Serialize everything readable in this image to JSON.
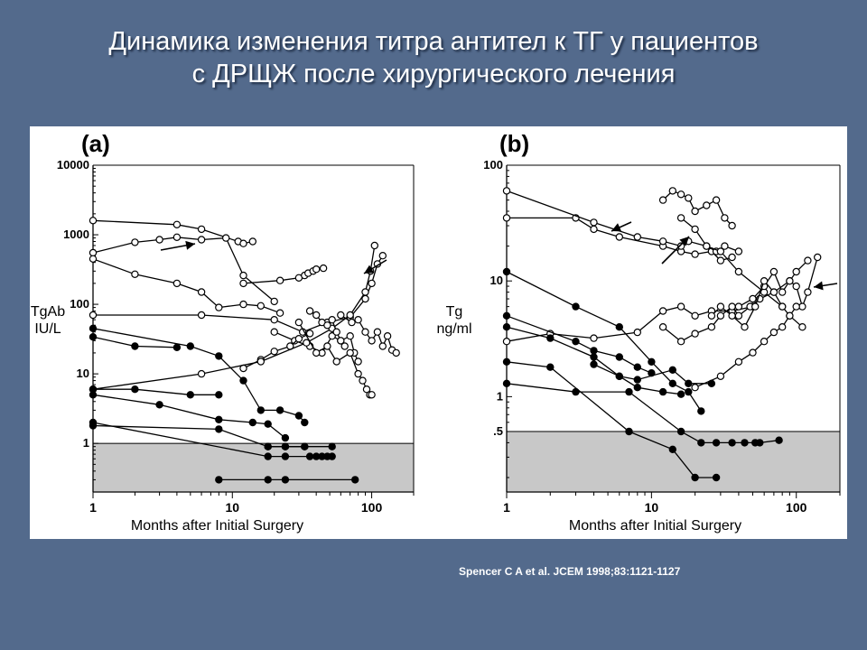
{
  "slide": {
    "title_line1": "Динамика изменения титра антител к ТГ у пациентов",
    "title_line2": "с ДРЩЖ после хирургического лечения",
    "citation": "Spencer C A et al. JCEM 1998;83:1121-1127"
  },
  "colors": {
    "background": "#536a8c",
    "panel": "#ffffff",
    "shaded_region": "#c8c8c8",
    "ink": "#000000"
  },
  "chart_data": [
    {
      "type": "scatter",
      "panel_label": "(a)",
      "xlabel": "Months after Initial Surgery",
      "ylabel_line1": "TgAb",
      "ylabel_line2": "IU/L",
      "x_scale": "log",
      "y_scale": "log",
      "xlim": [
        1,
        200
      ],
      "ylim": [
        0.2,
        10000
      ],
      "x_ticks": [
        {
          "value": 1,
          "label": "1"
        },
        {
          "value": 10,
          "label": "10"
        },
        {
          "value": 100,
          "label": "100"
        }
      ],
      "y_ticks": [
        {
          "value": 10000,
          "label": "10000"
        },
        {
          "value": 1000,
          "label": "1000"
        },
        {
          "value": 100,
          "label": "100"
        },
        {
          "value": 10,
          "label": "10"
        },
        {
          "value": 1,
          "label": "1"
        }
      ],
      "shaded_below": 1,
      "series": [
        {
          "marker": "open",
          "x": [
            1,
            4,
            6,
            11,
            12,
            14
          ],
          "y": [
            1600,
            1400,
            1200,
            800,
            750,
            800
          ]
        },
        {
          "marker": "open",
          "x": [
            1,
            2,
            3,
            4,
            6,
            9,
            12,
            20
          ],
          "y": [
            550,
            780,
            850,
            920,
            850,
            900,
            260,
            110
          ]
        },
        {
          "marker": "open",
          "x": [
            1,
            2,
            4,
            6,
            8,
            12,
            16,
            22
          ],
          "y": [
            450,
            270,
            200,
            150,
            90,
            100,
            95,
            75
          ]
        },
        {
          "marker": "open",
          "x": [
            12,
            22,
            30,
            33,
            35,
            38,
            40,
            45
          ],
          "y": [
            200,
            220,
            240,
            260,
            280,
            300,
            320,
            330
          ]
        },
        {
          "marker": "open",
          "x": [
            1,
            6,
            20,
            32,
            48,
            70,
            90,
            100,
            110,
            120
          ],
          "y": [
            70,
            70,
            60,
            40,
            55,
            65,
            120,
            200,
            380,
            500
          ]
        },
        {
          "marker": "open",
          "x": [
            20,
            28,
            36,
            44,
            52,
            60,
            70,
            75,
            80
          ],
          "y": [
            40,
            30,
            25,
            20,
            35,
            30,
            35,
            20,
            15
          ]
        },
        {
          "marker": "open",
          "x": [
            12,
            16,
            20,
            26,
            30,
            36
          ],
          "y": [
            12,
            16,
            21,
            25,
            32,
            38
          ]
        },
        {
          "marker": "open",
          "x": [
            1,
            6,
            16,
            34,
            52,
            70,
            90,
            98,
            105
          ],
          "y": [
            6,
            10,
            15,
            28,
            45,
            70,
            150,
            300,
            700
          ]
        },
        {
          "marker": "open",
          "x": [
            30,
            40,
            48,
            56,
            70,
            80,
            86,
            92,
            97,
            100
          ],
          "y": [
            55,
            20,
            25,
            15,
            20,
            10,
            8,
            6,
            5,
            5
          ]
        },
        {
          "marker": "open",
          "x": [
            60,
            72,
            80,
            90,
            100,
            110,
            120,
            130,
            140,
            150
          ],
          "y": [
            70,
            55,
            60,
            40,
            30,
            40,
            25,
            35,
            22,
            20
          ]
        },
        {
          "marker": "open",
          "x": [
            36,
            40,
            44,
            48,
            52,
            56,
            60,
            64
          ],
          "y": [
            80,
            70,
            55,
            50,
            60,
            40,
            30,
            25
          ]
        },
        {
          "marker": "filled",
          "x": [
            1,
            5,
            8,
            12,
            16,
            22,
            30,
            33
          ],
          "y": [
            45,
            25,
            18,
            8,
            3,
            3,
            2.5,
            2
          ]
        },
        {
          "marker": "filled",
          "x": [
            1,
            2,
            4
          ],
          "y": [
            34,
            25,
            24
          ]
        },
        {
          "marker": "filled",
          "x": [
            1,
            2,
            5,
            8
          ],
          "y": [
            6,
            6,
            5,
            5
          ]
        },
        {
          "marker": "filled",
          "x": [
            1,
            3,
            8,
            14,
            18,
            24
          ],
          "y": [
            5,
            3.6,
            2.2,
            2,
            1.9,
            1.2
          ]
        },
        {
          "marker": "filled",
          "x": [
            1,
            8,
            18,
            24,
            33
          ],
          "y": [
            1.8,
            1.6,
            0.9,
            0.9,
            0.9
          ]
        },
        {
          "marker": "filled",
          "x": [
            1,
            18,
            24,
            36,
            40,
            44,
            48,
            52
          ],
          "y": [
            2,
            0.65,
            0.65,
            0.65,
            0.65,
            0.65,
            0.65,
            0.65
          ]
        },
        {
          "marker": "filled",
          "x": [
            18,
            24,
            33,
            52
          ],
          "y": [
            0.9,
            0.9,
            0.9,
            0.9
          ]
        },
        {
          "marker": "filled",
          "x": [
            8,
            18,
            24,
            76
          ],
          "y": [
            0.3,
            0.3,
            0.3,
            0.3
          ]
        }
      ]
    },
    {
      "type": "scatter",
      "panel_label": "(b)",
      "xlabel": "Months after Initial Surgery",
      "ylabel_line1": "Tg",
      "ylabel_line2": "ng/ml",
      "x_scale": "log",
      "y_scale": "log",
      "xlim": [
        1,
        200
      ],
      "ylim": [
        0.15,
        100
      ],
      "x_ticks": [
        {
          "value": 1,
          "label": "1"
        },
        {
          "value": 10,
          "label": "10"
        },
        {
          "value": 100,
          "label": "100"
        }
      ],
      "y_ticks": [
        {
          "value": 100,
          "label": "100"
        },
        {
          "value": 10,
          "label": "10"
        },
        {
          "value": 1,
          "label": "1"
        },
        {
          "value": 0.5,
          "label": ".5"
        }
      ],
      "shaded_below": 0.5,
      "series": [
        {
          "marker": "open",
          "x": [
            1,
            3,
            4,
            6,
            12,
            16,
            20,
            26,
            30,
            36
          ],
          "y": [
            35,
            35,
            28,
            24,
            20,
            18,
            17,
            18,
            15,
            16
          ]
        },
        {
          "marker": "open",
          "x": [
            1,
            4,
            8,
            12,
            16,
            18,
            24,
            28,
            32,
            40
          ],
          "y": [
            60,
            32,
            24,
            22,
            20,
            22,
            20,
            18,
            20,
            18
          ]
        },
        {
          "marker": "open",
          "x": [
            12,
            14,
            16,
            18,
            20,
            24,
            28,
            32,
            36
          ],
          "y": [
            50,
            60,
            56,
            52,
            40,
            45,
            50,
            35,
            30
          ]
        },
        {
          "marker": "open",
          "x": [
            16,
            20,
            24,
            30,
            40,
            60,
            80
          ],
          "y": [
            35,
            28,
            20,
            18,
            12,
            8,
            6
          ]
        },
        {
          "marker": "open",
          "x": [
            1,
            2,
            4,
            8,
            12,
            16,
            20,
            26,
            36,
            50
          ],
          "y": [
            3,
            3.5,
            3.2,
            3.6,
            5.5,
            6,
            5,
            5.5,
            5.5,
            6
          ]
        },
        {
          "marker": "open",
          "x": [
            12,
            16,
            20,
            26,
            30,
            36,
            40,
            48,
            56,
            70,
            90,
            100,
            120
          ],
          "y": [
            4,
            3,
            3.5,
            4,
            5,
            6,
            5,
            6,
            7,
            8,
            10,
            12,
            15
          ]
        },
        {
          "marker": "open",
          "x": [
            40,
            50,
            60,
            70,
            80,
            90,
            100,
            110,
            120,
            140
          ],
          "y": [
            6,
            7,
            9,
            12,
            8,
            10,
            9,
            6,
            8,
            16
          ]
        },
        {
          "marker": "open",
          "x": [
            26,
            30,
            36,
            44,
            52,
            60,
            70,
            80,
            90,
            110
          ],
          "y": [
            5,
            6,
            5,
            4,
            6,
            10,
            8,
            6,
            5,
            4
          ]
        },
        {
          "marker": "open",
          "x": [
            20,
            30,
            40,
            50,
            60,
            70,
            80,
            90,
            100
          ],
          "y": [
            1.2,
            1.5,
            2,
            2.4,
            3,
            3.6,
            4,
            5,
            6
          ]
        },
        {
          "marker": "filled",
          "x": [
            1,
            3,
            6,
            10,
            14,
            18,
            22
          ],
          "y": [
            12,
            6,
            4,
            2,
            1.3,
            1.1,
            0.75
          ]
        },
        {
          "marker": "filled",
          "x": [
            1,
            3,
            4,
            6,
            8,
            10
          ],
          "y": [
            5,
            3,
            2.5,
            2.2,
            1.8,
            1.6
          ]
        },
        {
          "marker": "filled",
          "x": [
            1,
            2,
            4,
            6,
            8,
            12,
            16
          ],
          "y": [
            4,
            3.2,
            2.2,
            1.5,
            1.2,
            1.1,
            1.05
          ]
        },
        {
          "marker": "filled",
          "x": [
            1,
            3,
            7,
            16,
            22,
            28,
            36,
            44,
            52,
            56,
            76
          ],
          "y": [
            1.3,
            1.1,
            1.1,
            0.5,
            0.4,
            0.4,
            0.4,
            0.4,
            0.4,
            0.4,
            0.42
          ]
        },
        {
          "marker": "filled",
          "x": [
            4,
            6,
            8,
            14,
            18,
            26
          ],
          "y": [
            1.9,
            1.5,
            1.4,
            1.7,
            1.3,
            1.3
          ]
        },
        {
          "marker": "filled",
          "x": [
            1,
            2,
            7,
            14,
            20,
            28
          ],
          "y": [
            2,
            1.8,
            0.5,
            0.35,
            0.2,
            0.2
          ]
        }
      ]
    }
  ]
}
